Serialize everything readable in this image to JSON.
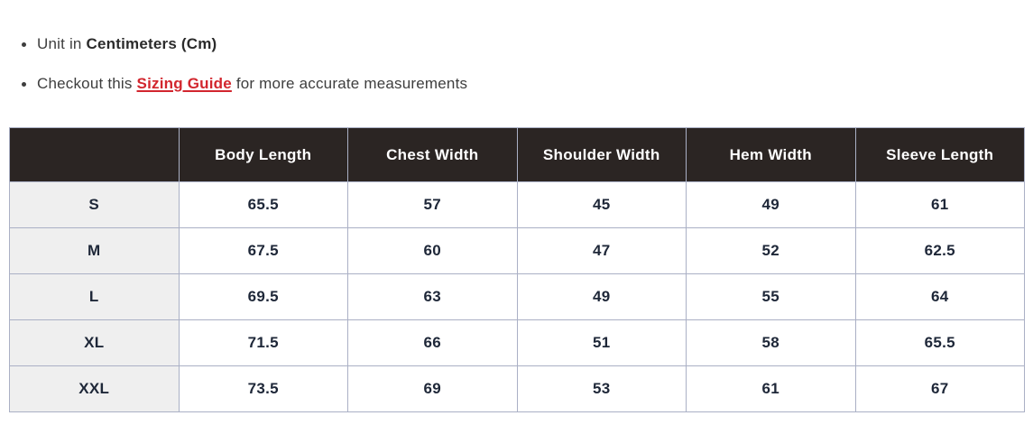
{
  "notes": {
    "unit": {
      "prefix": "Unit in ",
      "bold": "Centimeters (Cm)"
    },
    "guide": {
      "prefix": "Checkout this ",
      "link": "Sizing Guide",
      "suffix": " for more accurate measurements"
    }
  },
  "size_table": {
    "columns": [
      "",
      "Body Length",
      "Chest Width",
      "Shoulder Width",
      "Hem Width",
      "Sleeve Length"
    ],
    "rows": [
      {
        "size": "S",
        "values": [
          "65.5",
          "57",
          "45",
          "49",
          "61"
        ]
      },
      {
        "size": "M",
        "values": [
          "67.5",
          "60",
          "47",
          "52",
          "62.5"
        ]
      },
      {
        "size": "L",
        "values": [
          "69.5",
          "63",
          "49",
          "55",
          "64"
        ]
      },
      {
        "size": "XL",
        "values": [
          "71.5",
          "66",
          "51",
          "58",
          "65.5"
        ]
      },
      {
        "size": "XXL",
        "values": [
          "73.5",
          "69",
          "53",
          "61",
          "67"
        ]
      }
    ]
  },
  "colors": {
    "header_bg": "#2b2523",
    "header_text": "#ffffff",
    "size_col_bg": "#efefef",
    "border": "#aab0c5",
    "cell_text": "#1e2738",
    "link_red": "#d2262e",
    "body_text": "#3e3e3e"
  }
}
